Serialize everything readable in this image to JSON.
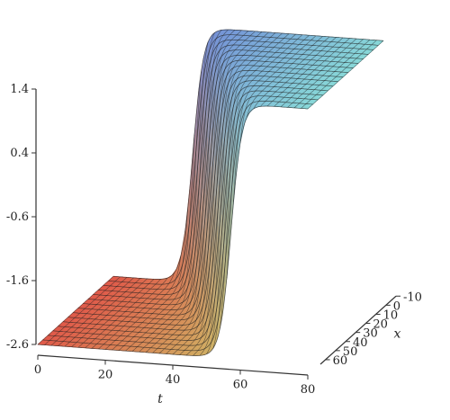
{
  "chart_data": {
    "type": "surface",
    "title": "",
    "xlabel": "t",
    "ylabel": "x",
    "zlabel": "",
    "t_ticks": [
      "0",
      "20",
      "40",
      "60",
      "80"
    ],
    "x_ticks": [
      "-10",
      "0",
      "10",
      "20",
      "30",
      "40",
      "50",
      "60"
    ],
    "z_ticks": [
      "1.4",
      "0.4",
      "-0.6",
      "-1.6",
      "-2.6"
    ],
    "t_range": [
      0,
      80
    ],
    "x_range": [
      -10,
      65
    ],
    "z_range": [
      -2.6,
      1.4
    ],
    "surface": {
      "description_values": {
        "low_level": -2.6,
        "high_level": 1.4
      },
      "kink_fronts": [
        {
          "t": 30,
          "x_center": 0
        },
        {
          "t": 36,
          "x_center": 15
        },
        {
          "t": 43,
          "x_center": 30
        },
        {
          "t": 52,
          "x_center": 45
        },
        {
          "t": 62,
          "x_center": 60
        }
      ]
    },
    "colors": {
      "low_left": "#e05a4a",
      "low_right": "#d4e070",
      "high_left": "#7070d8",
      "high_right": "#70d8d8",
      "mesh": "#222222"
    }
  }
}
